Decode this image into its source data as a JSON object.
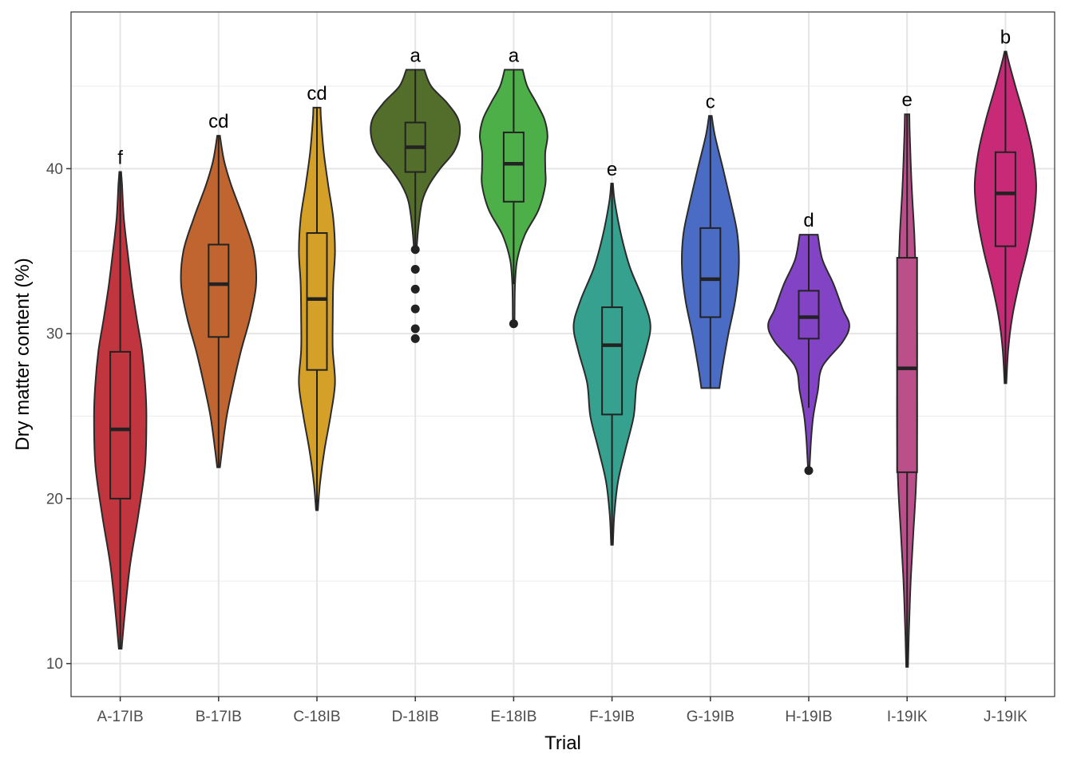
{
  "chart_data": {
    "type": "violin",
    "xlabel": "Trial",
    "ylabel": "Dry matter content (%)",
    "ylim": [
      8,
      49.5
    ],
    "y_ticks": [
      10,
      20,
      30,
      40
    ],
    "grid": true,
    "legend": "none",
    "categories": [
      "A-17IB",
      "B-17IB",
      "C-18IB",
      "D-18IB",
      "E-18IB",
      "F-19IB",
      "G-19IB",
      "H-19IB",
      "I-19IK",
      "J-19IK"
    ],
    "series": [
      {
        "category": "A-17IB",
        "color": "#C0353E",
        "letter": "f",
        "min": 10.9,
        "max": 39.8,
        "q1": 20.0,
        "median": 24.2,
        "q3": 28.9,
        "whisker_low": 10.9,
        "whisker_high": 39.8,
        "outliers": [],
        "density": [
          [
            10.9,
            0.03
          ],
          [
            13,
            0.1
          ],
          [
            16,
            0.22
          ],
          [
            19,
            0.4
          ],
          [
            22,
            0.55
          ],
          [
            25,
            0.58
          ],
          [
            27,
            0.55
          ],
          [
            29,
            0.48
          ],
          [
            31,
            0.36
          ],
          [
            33,
            0.25
          ],
          [
            35,
            0.16
          ],
          [
            37,
            0.08
          ],
          [
            39,
            0.04
          ],
          [
            39.8,
            0.02
          ]
        ]
      },
      {
        "category": "B-17IB",
        "color": "#C0652F",
        "letter": "cd",
        "min": 21.9,
        "max": 42.0,
        "q1": 29.8,
        "median": 33.0,
        "q3": 35.4,
        "whisker_low": 21.9,
        "whisker_high": 42.0,
        "outliers": [],
        "density": [
          [
            21.9,
            0.03
          ],
          [
            23,
            0.08
          ],
          [
            25,
            0.18
          ],
          [
            27,
            0.33
          ],
          [
            29,
            0.5
          ],
          [
            31,
            0.7
          ],
          [
            33,
            0.83
          ],
          [
            35,
            0.78
          ],
          [
            37,
            0.55
          ],
          [
            39,
            0.28
          ],
          [
            40.5,
            0.12
          ],
          [
            42,
            0.03
          ]
        ]
      },
      {
        "category": "C-18IB",
        "color": "#D4A027",
        "letter": "cd",
        "min": 19.3,
        "max": 43.7,
        "q1": 27.8,
        "median": 32.1,
        "q3": 36.1,
        "whisker_low": 19.3,
        "whisker_high": 43.7,
        "outliers": [],
        "density": [
          [
            19.3,
            0.02
          ],
          [
            21,
            0.07
          ],
          [
            23,
            0.17
          ],
          [
            25,
            0.3
          ],
          [
            27,
            0.4
          ],
          [
            29,
            0.35
          ],
          [
            31,
            0.35
          ],
          [
            33,
            0.36
          ],
          [
            35,
            0.4
          ],
          [
            37,
            0.36
          ],
          [
            39,
            0.25
          ],
          [
            41,
            0.15
          ],
          [
            43,
            0.09
          ],
          [
            43.7,
            0.08
          ]
        ]
      },
      {
        "category": "D-18IB",
        "color": "#536E2B",
        "letter": "a",
        "min": 29.7,
        "max": 46.0,
        "q1": 39.8,
        "median": 41.3,
        "q3": 42.8,
        "whisker_low": 35.2,
        "whisker_high": 46.0,
        "outliers": [
          35.1,
          33.9,
          32.7,
          31.5,
          30.3,
          29.7
        ],
        "density": [
          [
            35.2,
            0.03
          ],
          [
            36.5,
            0.07
          ],
          [
            38,
            0.15
          ],
          [
            39,
            0.3
          ],
          [
            40,
            0.55
          ],
          [
            41,
            0.85
          ],
          [
            42,
            0.98
          ],
          [
            43,
            0.95
          ],
          [
            44,
            0.7
          ],
          [
            45,
            0.35
          ],
          [
            46,
            0.2
          ]
        ]
      },
      {
        "category": "E-18IB",
        "color": "#4DAF48",
        "letter": "a",
        "min": 30.6,
        "max": 46.0,
        "q1": 38.0,
        "median": 40.3,
        "q3": 42.2,
        "whisker_low": 33.0,
        "whisker_high": 46.0,
        "outliers": [
          30.6
        ],
        "density": [
          [
            30.9,
            0.02
          ],
          [
            33,
            0.03
          ],
          [
            34.5,
            0.08
          ],
          [
            36,
            0.25
          ],
          [
            37.5,
            0.55
          ],
          [
            39,
            0.7
          ],
          [
            40,
            0.7
          ],
          [
            41,
            0.7
          ],
          [
            42,
            0.75
          ],
          [
            43,
            0.68
          ],
          [
            44,
            0.5
          ],
          [
            45,
            0.3
          ],
          [
            46,
            0.2
          ]
        ]
      },
      {
        "category": "F-19IB",
        "color": "#36A18E",
        "letter": "e",
        "min": 17.2,
        "max": 39.1,
        "q1": 25.1,
        "median": 29.3,
        "q3": 31.6,
        "whisker_low": 17.2,
        "whisker_high": 39.1,
        "outliers": [],
        "density": [
          [
            17.2,
            0.02
          ],
          [
            19,
            0.05
          ],
          [
            21,
            0.13
          ],
          [
            23,
            0.3
          ],
          [
            25,
            0.48
          ],
          [
            27,
            0.55
          ],
          [
            29,
            0.75
          ],
          [
            30.5,
            0.85
          ],
          [
            32,
            0.7
          ],
          [
            34,
            0.4
          ],
          [
            36,
            0.2
          ],
          [
            38,
            0.06
          ],
          [
            39.1,
            0.02
          ]
        ]
      },
      {
        "category": "G-19IB",
        "color": "#4B6CC4",
        "letter": "c",
        "min": 26.7,
        "max": 43.2,
        "q1": 31.0,
        "median": 33.3,
        "q3": 36.4,
        "whisker_low": 26.7,
        "whisker_high": 43.2,
        "outliers": [],
        "density": [
          [
            26.7,
            0.2
          ],
          [
            28,
            0.27
          ],
          [
            30,
            0.4
          ],
          [
            32,
            0.55
          ],
          [
            34,
            0.63
          ],
          [
            36,
            0.6
          ],
          [
            38,
            0.45
          ],
          [
            40,
            0.28
          ],
          [
            42,
            0.1
          ],
          [
            43.2,
            0.03
          ]
        ]
      },
      {
        "category": "H-19IB",
        "color": "#8243C4",
        "letter": "d",
        "min": 21.7,
        "max": 36.0,
        "q1": 29.7,
        "median": 31.0,
        "q3": 32.6,
        "whisker_low": 25.5,
        "whisker_high": 36.0,
        "outliers": [
          21.7
        ],
        "density": [
          [
            22,
            0.02
          ],
          [
            23.5,
            0.05
          ],
          [
            25,
            0.1
          ],
          [
            26.5,
            0.2
          ],
          [
            28,
            0.3
          ],
          [
            29.5,
            0.75
          ],
          [
            30.5,
            0.9
          ],
          [
            31.5,
            0.75
          ],
          [
            33,
            0.55
          ],
          [
            34.5,
            0.3
          ],
          [
            36,
            0.2
          ]
        ]
      },
      {
        "category": "I-19IK",
        "color": "#BA4F8A",
        "letter": "e",
        "min": 9.8,
        "max": 43.3,
        "q1": 21.6,
        "median": 27.9,
        "q3": 34.6,
        "whisker_low": 9.8,
        "whisker_high": 43.3,
        "outliers": [],
        "density": [
          [
            9.8,
            0.02
          ],
          [
            12,
            0.04
          ],
          [
            15,
            0.08
          ],
          [
            18,
            0.14
          ],
          [
            21,
            0.2
          ],
          [
            24,
            0.22
          ],
          [
            27,
            0.22
          ],
          [
            30,
            0.22
          ],
          [
            33,
            0.2
          ],
          [
            36,
            0.16
          ],
          [
            39,
            0.1
          ],
          [
            42,
            0.06
          ],
          [
            43.3,
            0.05
          ]
        ]
      },
      {
        "category": "J-19IK",
        "color": "#C82A78",
        "letter": "b",
        "min": 27.0,
        "max": 47.1,
        "q1": 35.3,
        "median": 38.5,
        "q3": 41.0,
        "whisker_low": 27.0,
        "whisker_high": 47.1,
        "outliers": [],
        "density": [
          [
            27,
            0.02
          ],
          [
            29,
            0.06
          ],
          [
            31,
            0.15
          ],
          [
            33,
            0.3
          ],
          [
            35,
            0.48
          ],
          [
            37,
            0.62
          ],
          [
            39,
            0.68
          ],
          [
            41,
            0.6
          ],
          [
            43,
            0.43
          ],
          [
            45,
            0.22
          ],
          [
            46.5,
            0.07
          ],
          [
            47.1,
            0.02
          ]
        ]
      }
    ]
  }
}
